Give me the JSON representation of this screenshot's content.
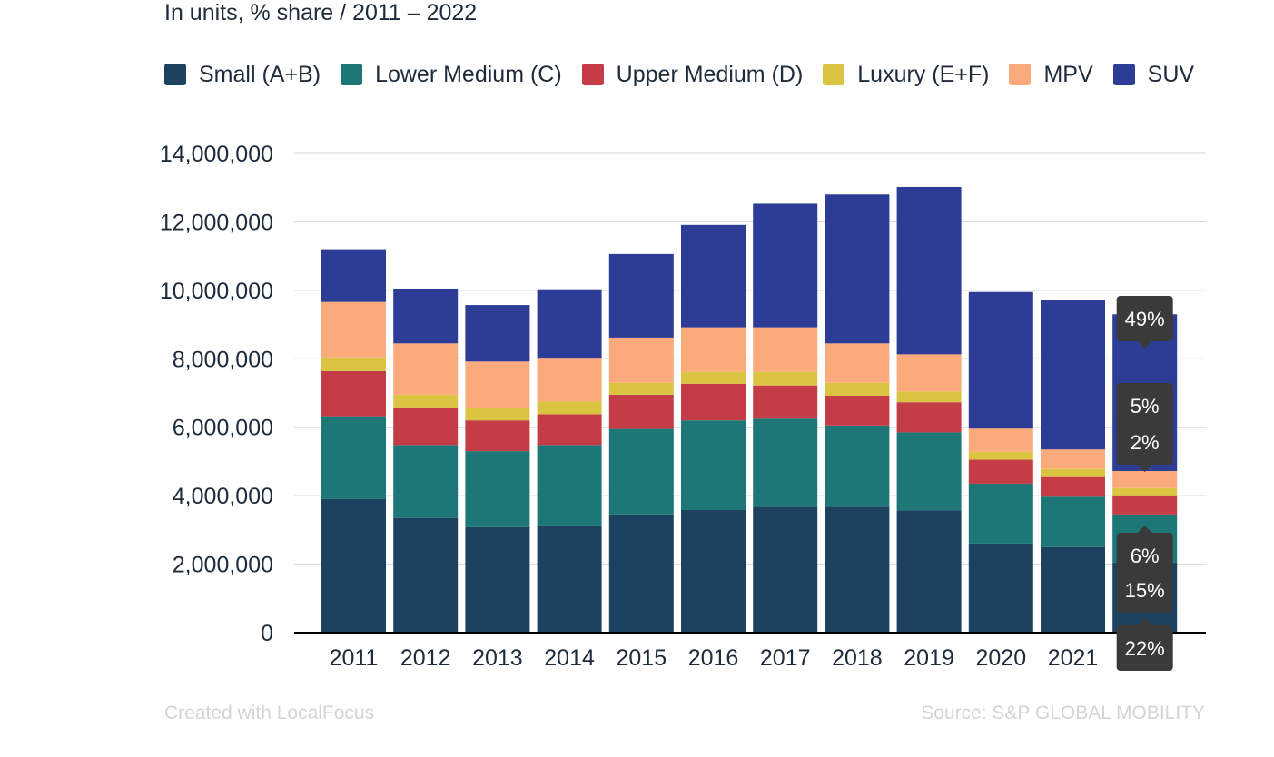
{
  "chart_data": {
    "type": "bar",
    "stacked": true,
    "subtitle": "In units, % share / 2011 – 2022",
    "categories": [
      "2011",
      "2012",
      "2013",
      "2014",
      "2015",
      "2016",
      "2017",
      "2018",
      "2019",
      "2020",
      "2021",
      "2022"
    ],
    "ylim": [
      0,
      14000000
    ],
    "yticks": [
      0,
      2000000,
      4000000,
      6000000,
      8000000,
      10000000,
      12000000,
      14000000
    ],
    "ytick_labels": [
      "0",
      "2,000,000",
      "4,000,000",
      "6,000,000",
      "8,000,000",
      "10,000,000",
      "12,000,000",
      "14,000,000"
    ],
    "grid": true,
    "legend_position": "top-left",
    "series": [
      {
        "name": "Small (A+B)",
        "color": "#1d4260",
        "values": [
          3900000,
          3350000,
          3080000,
          3130000,
          3450000,
          3580000,
          3670000,
          3670000,
          3570000,
          2600000,
          2500000,
          2050000
        ]
      },
      {
        "name": "Lower Medium (C)",
        "color": "#1e7777",
        "values": [
          2420000,
          2130000,
          2220000,
          2350000,
          2500000,
          2620000,
          2580000,
          2380000,
          2280000,
          1750000,
          1470000,
          1400000
        ]
      },
      {
        "name": "Upper Medium (D)",
        "color": "#c43c45",
        "values": [
          1320000,
          1100000,
          900000,
          900000,
          1000000,
          1070000,
          970000,
          870000,
          880000,
          700000,
          600000,
          560000
        ]
      },
      {
        "name": "Luxury (E+F)",
        "color": "#dcc443",
        "values": [
          400000,
          370000,
          350000,
          370000,
          350000,
          350000,
          400000,
          380000,
          320000,
          230000,
          210000,
          210000
        ]
      },
      {
        "name": "MPV",
        "color": "#fca97b",
        "values": [
          1620000,
          1500000,
          1370000,
          1280000,
          1320000,
          1300000,
          1300000,
          1150000,
          1080000,
          680000,
          570000,
          500000
        ]
      },
      {
        "name": "SUV",
        "color": "#2d3d95",
        "values": [
          1540000,
          1600000,
          1650000,
          2000000,
          2440000,
          2990000,
          3610000,
          4350000,
          4890000,
          3990000,
          4370000,
          4580000
        ]
      }
    ],
    "annotations": [
      {
        "category": "2022",
        "series": "SUV",
        "text": "49%"
      },
      {
        "category": "2022",
        "series": "MPV",
        "text": "5%"
      },
      {
        "category": "2022",
        "series": "Luxury (E+F)",
        "text": "2%"
      },
      {
        "category": "2022",
        "series": "Upper Medium (D)",
        "text": "6%"
      },
      {
        "category": "2022",
        "series": "Lower Medium (C)",
        "text": "15%"
      },
      {
        "category": "2022",
        "series": "Small (A+B)",
        "text": "22%"
      }
    ]
  },
  "footer": {
    "credit": "Created with LocalFocus",
    "source": "Source:  S&P GLOBAL MOBILITY"
  }
}
